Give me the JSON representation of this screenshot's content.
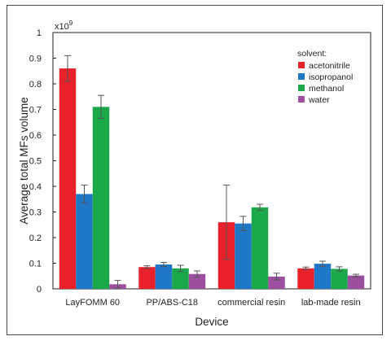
{
  "chart_data": {
    "type": "bar",
    "categories": [
      "LayFOMM 60",
      "PP/ABS-C18",
      "commercial resin",
      "lab-made resin"
    ],
    "series": [
      {
        "name": "acetonitrile",
        "color": "#e8212b",
        "values": [
          0.86,
          0.085,
          0.26,
          0.08
        ],
        "errors": [
          0.05,
          0.005,
          0.145,
          0.005
        ]
      },
      {
        "name": "isopropanol",
        "color": "#1f77c8",
        "values": [
          0.37,
          0.095,
          0.255,
          0.098
        ],
        "errors": [
          0.035,
          0.008,
          0.028,
          0.01
        ]
      },
      {
        "name": "methanol",
        "color": "#1aa84a",
        "values": [
          0.71,
          0.08,
          0.318,
          0.078
        ],
        "errors": [
          0.045,
          0.012,
          0.012,
          0.008
        ]
      },
      {
        "name": "water",
        "color": "#9b4f9e",
        "values": [
          0.018,
          0.058,
          0.048,
          0.052
        ],
        "errors": [
          0.015,
          0.012,
          0.013,
          0.005
        ]
      }
    ],
    "title": "",
    "xlabel": "Device",
    "ylabel": "Average total MFs volume",
    "y_scale_label": "x10",
    "y_scale_exponent": "9",
    "ylim": [
      0,
      1
    ],
    "yticks": [
      "0",
      "0.1",
      "0.2",
      "0.3",
      "0.4",
      "0.5",
      "0.6",
      "0.7",
      "0.8",
      "0.9",
      "1"
    ],
    "legend_title": "solvent:",
    "legend_position": "top-right",
    "grid": false
  }
}
